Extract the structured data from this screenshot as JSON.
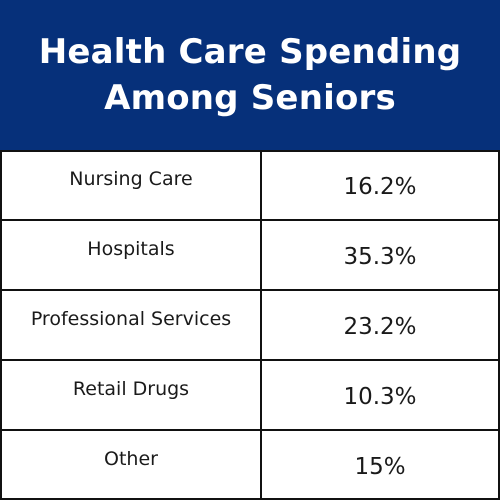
{
  "chart_data": {
    "type": "table",
    "title": "Health Care Spending Among Seniors",
    "title_lines": [
      "Health Care Spending",
      "Among Seniors"
    ],
    "rows": [
      {
        "label": "Nursing Care",
        "value_text": "16.2%",
        "value": 16.2
      },
      {
        "label": "Hospitals",
        "value_text": "35.3%",
        "value": 35.3
      },
      {
        "label": "Professional Services",
        "value_text": "23.2%",
        "value": 23.2
      },
      {
        "label": "Retail Drugs",
        "value_text": "10.3%",
        "value": 10.3
      },
      {
        "label": "Other",
        "value_text": "15%",
        "value": 15
      }
    ]
  },
  "colors": {
    "header_background": "#06307a",
    "header_text": "#ffffff",
    "table_border": "#111111",
    "cell_text": "#1a1a1a"
  }
}
